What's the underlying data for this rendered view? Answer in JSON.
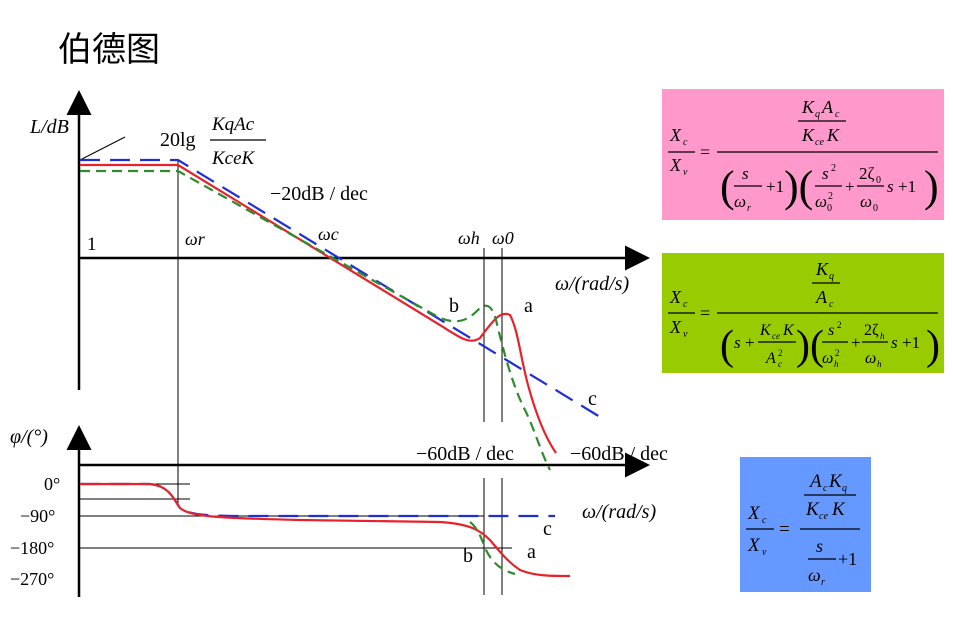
{
  "title": "伯德图",
  "colors": {
    "curve_a": "#e8222a",
    "curve_b": "#2e8b2e",
    "curve_c": "#1f2fd6",
    "pink_box": "#ff99cc",
    "green_box": "#99cc00",
    "blue_box": "#6699ff"
  },
  "magnitude": {
    "ylabel": "L/dB",
    "xlabel": "ω/(rad/s)",
    "gain_label_prefix": "20lg",
    "gain_fraction_num": "KqAc",
    "gain_fraction_den": "KceK",
    "slope_label": "−20dB / dec",
    "origin_label": "1",
    "omega_r": "ωr",
    "omega_c": "ωc",
    "omega_h": "ωh",
    "omega_0": "ω0",
    "curve_labels": {
      "a": "a",
      "b": "b",
      "c": "c"
    },
    "slope_label_b": "−60dB / dec",
    "slope_label_a": "−60dB / dec"
  },
  "phase": {
    "ylabel": "φ/(°)",
    "xlabel": "ω/(rad/s)",
    "ticks": [
      "0°",
      "−90°",
      "−180°",
      "−270°"
    ],
    "curve_labels": {
      "a": "a",
      "b": "b",
      "c": "c"
    }
  },
  "formulas": {
    "pink": {
      "lhs_num": "Xc",
      "lhs_den": "Xv",
      "rhs_num_top": "KqAc",
      "rhs_num_bottom": "KceK",
      "factor1": "s/ωr + 1",
      "factor2": "s²/ω0² + 2ζ0/ω0 s + 1"
    },
    "green": {
      "lhs_num": "Xc",
      "lhs_den": "Xv",
      "rhs_num_top": "Kq",
      "rhs_num_bottom": "Ac",
      "factor1": "s + KceK/Ac²",
      "factor2": "s²/ωh² + 2ζh/ωh s + 1"
    },
    "blue": {
      "lhs_num": "Xc",
      "lhs_den": "Xv",
      "rhs_num": "AcKq",
      "rhs_den_top": "KceK",
      "rhs_den_bottom": "s/ωr + 1"
    }
  }
}
